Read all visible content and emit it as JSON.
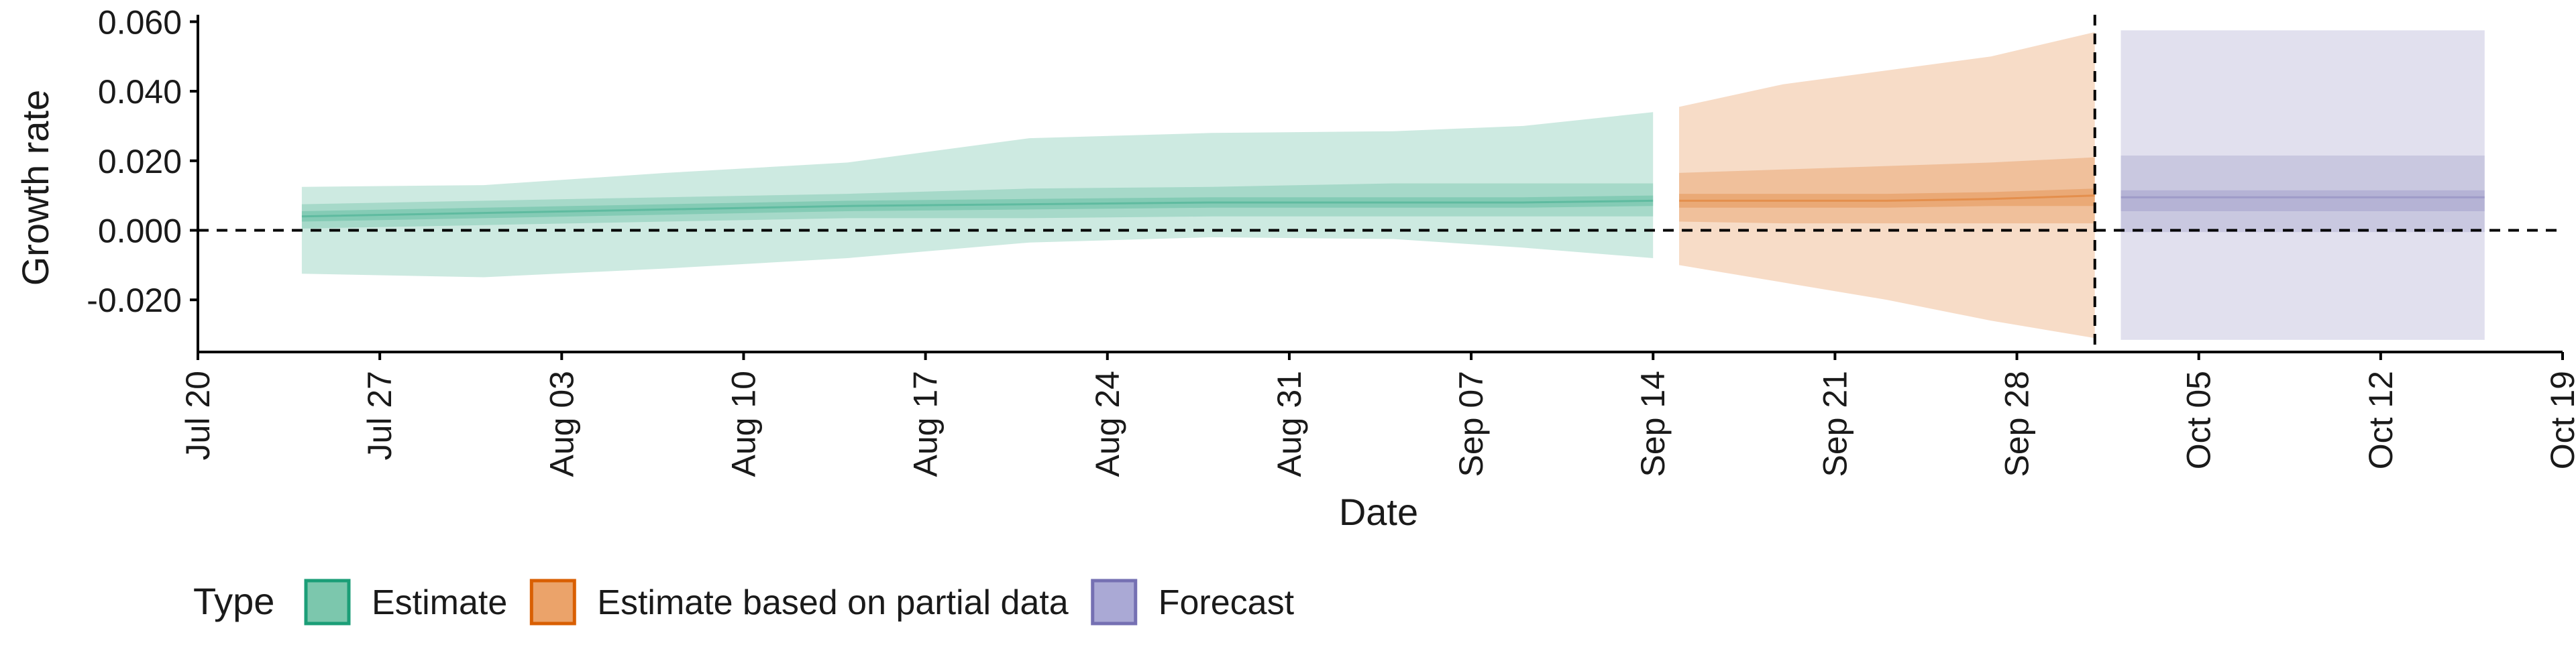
{
  "chart_data": {
    "type": "area",
    "title": "",
    "xlabel": "Date",
    "ylabel": "Growth rate",
    "x_ticks": [
      "Jul 20",
      "Jul 27",
      "Aug 03",
      "Aug 10",
      "Aug 17",
      "Aug 24",
      "Aug 31",
      "Sep 07",
      "Sep 14",
      "Sep 21",
      "Sep 28",
      "Oct 05",
      "Oct 12",
      "Oct 19"
    ],
    "x_range": [
      "2020-07-20",
      "2020-10-19"
    ],
    "y_ticks": [
      "0.060",
      "0.040",
      "0.020",
      "0.000",
      "-0.020"
    ],
    "ylim": [
      -0.035,
      0.062
    ],
    "reference_lines": {
      "horizontal": 0.0,
      "vertical": "2020-10-01"
    },
    "legend": {
      "title": "Type",
      "position": "bottom-left",
      "items": [
        {
          "label": "Estimate",
          "fill": "#7cc7ad",
          "border": "#1b9e77"
        },
        {
          "label": "Estimate based on partial data",
          "fill": "#eba36a",
          "border": "#d95f02"
        },
        {
          "label": "Forecast",
          "fill": "#aaa9d5",
          "border": "#7570b3"
        }
      ]
    },
    "series": [
      {
        "name": "Estimate",
        "color": "#1b9e77",
        "x": [
          "2020-07-24",
          "2020-07-31",
          "2020-08-07",
          "2020-08-14",
          "2020-08-21",
          "2020-08-28",
          "2020-09-04",
          "2020-09-09",
          "2020-09-14"
        ],
        "median": [
          0.004,
          0.005,
          0.006,
          0.007,
          0.0075,
          0.008,
          0.008,
          0.008,
          0.0085
        ],
        "lower_20": [
          0.0025,
          0.0035,
          0.0045,
          0.0055,
          0.006,
          0.0065,
          0.0065,
          0.0065,
          0.007
        ],
        "upper_20": [
          0.0055,
          0.0065,
          0.0075,
          0.0085,
          0.009,
          0.0095,
          0.0095,
          0.0095,
          0.01
        ],
        "lower_50": [
          0.0005,
          0.0015,
          0.0025,
          0.0035,
          0.0035,
          0.004,
          0.004,
          0.004,
          0.004
        ],
        "upper_50": [
          0.0075,
          0.0085,
          0.0095,
          0.0105,
          0.012,
          0.0125,
          0.0135,
          0.0135,
          0.0135
        ],
        "lower_90": [
          -0.0125,
          -0.0135,
          -0.011,
          -0.008,
          -0.0035,
          -0.002,
          -0.0025,
          -0.005,
          -0.008
        ],
        "upper_90": [
          0.0125,
          0.013,
          0.0165,
          0.0195,
          0.0265,
          0.028,
          0.0285,
          0.03,
          0.034
        ]
      },
      {
        "name": "Estimate based on partial data",
        "color": "#d95f02",
        "x": [
          "2020-09-15",
          "2020-09-19",
          "2020-09-23",
          "2020-09-27",
          "2020-10-01"
        ],
        "median": [
          0.0085,
          0.0085,
          0.0085,
          0.009,
          0.01
        ],
        "lower_20": [
          0.0065,
          0.0065,
          0.0065,
          0.007,
          0.007
        ],
        "upper_20": [
          0.0105,
          0.0105,
          0.0105,
          0.011,
          0.012
        ],
        "lower_50": [
          0.0025,
          0.002,
          0.002,
          0.002,
          0.002
        ],
        "upper_50": [
          0.0165,
          0.0175,
          0.0185,
          0.0195,
          0.021
        ],
        "lower_90": [
          -0.01,
          -0.015,
          -0.02,
          -0.026,
          -0.031
        ],
        "upper_90": [
          0.0355,
          0.042,
          0.046,
          0.05,
          0.057
        ]
      },
      {
        "name": "Forecast",
        "color": "#7570b3",
        "x": [
          "2020-10-02",
          "2020-10-16"
        ],
        "median": [
          0.0095,
          0.0095
        ],
        "lower_20": [
          0.0055,
          0.0055
        ],
        "upper_20": [
          0.0115,
          0.0115
        ],
        "lower_50": [
          -0.0005,
          -0.0005
        ],
        "upper_50": [
          0.0215,
          0.0215
        ],
        "lower_90": [
          -0.0315,
          -0.0315
        ],
        "upper_90": [
          0.0575,
          0.0575
        ]
      }
    ]
  }
}
